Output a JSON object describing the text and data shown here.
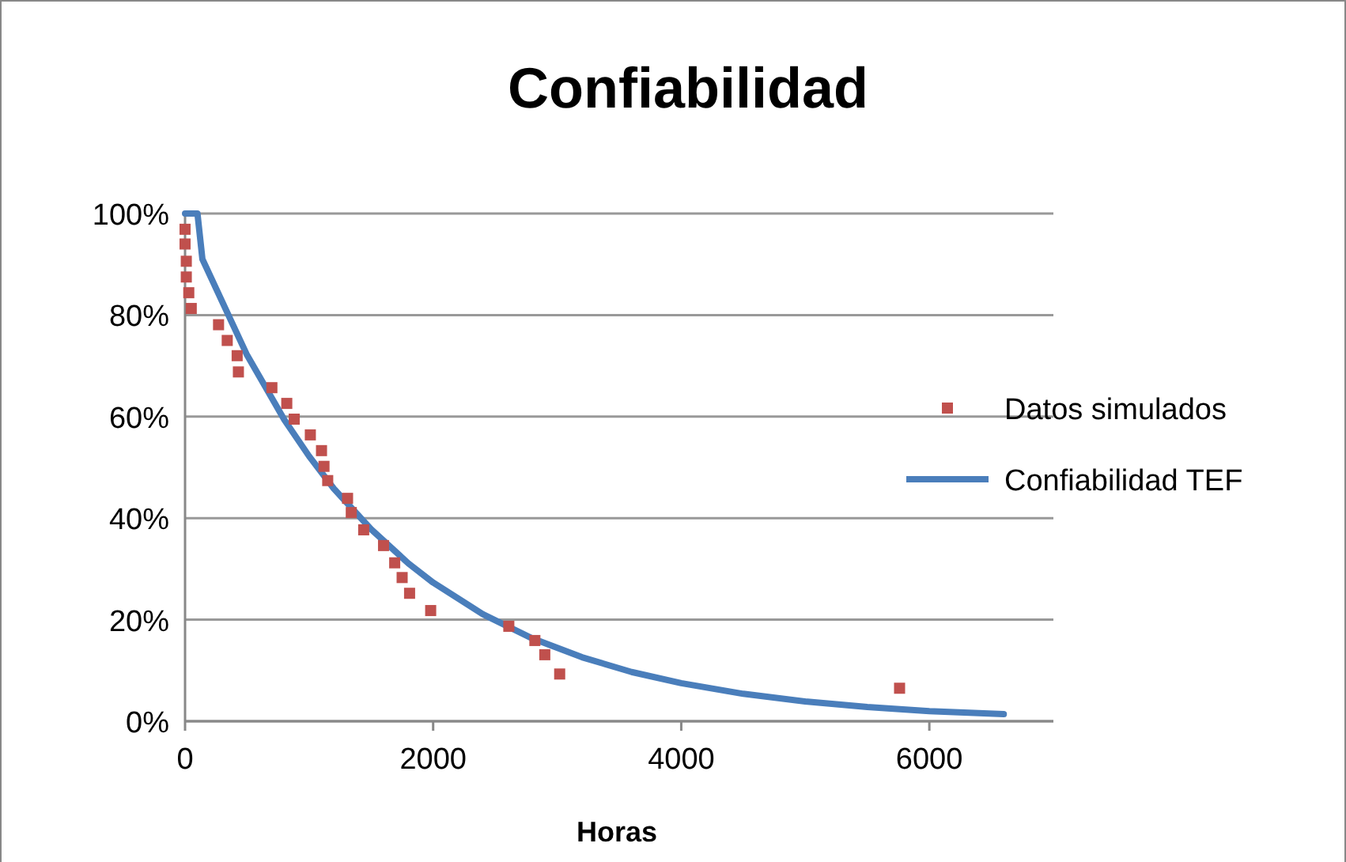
{
  "chart_data": {
    "type": "scatter",
    "title": "Confiabilidad",
    "xlabel": "Horas",
    "xlim": [
      0,
      7000
    ],
    "xticks": [
      0,
      2000,
      4000,
      6000
    ],
    "ylim": [
      0,
      100
    ],
    "yticks": [
      {
        "value": 0,
        "label": "0%"
      },
      {
        "value": 20,
        "label": "20%"
      },
      {
        "value": 40,
        "label": "40%"
      },
      {
        "value": 60,
        "label": "60%"
      },
      {
        "value": 80,
        "label": "80%"
      },
      {
        "value": 100,
        "label": "100%"
      }
    ],
    "grid": "y",
    "legend": "right",
    "series": [
      {
        "name": "Datos simulados",
        "marker": "square",
        "color": "#c0504d",
        "x": [
          0,
          0,
          10,
          10,
          30,
          50,
          270,
          340,
          420,
          430,
          700,
          820,
          880,
          1010,
          1100,
          1120,
          1150,
          1310,
          1340,
          1440,
          1600,
          1690,
          1750,
          1810,
          1980,
          2610,
          2820,
          2900,
          3020,
          5760
        ],
        "values": [
          96.9,
          94,
          90.6,
          87.5,
          84.4,
          81.3,
          78.1,
          75,
          72,
          68.8,
          65.7,
          62.6,
          59.5,
          56.4,
          53.3,
          50.2,
          47.4,
          43.9,
          41.1,
          37.7,
          34.6,
          31.2,
          28.3,
          25.2,
          21.8,
          18.7,
          15.9,
          13.1,
          9.3,
          6.5
        ]
      },
      {
        "name": "Confiabilidad TEF",
        "type": "line",
        "marker": "none",
        "line_style": "solid",
        "color": "#4a7ebb",
        "x": [
          0,
          100,
          140,
          500,
          800,
          1000,
          1200,
          1500,
          1800,
          2000,
          2400,
          2800,
          3200,
          3600,
          4000,
          4500,
          5000,
          5500,
          6000,
          6600
        ],
        "values": [
          100,
          100,
          91,
          72.1,
          59.4,
          52.2,
          45.8,
          37.8,
          31.1,
          27.3,
          21.1,
          16.3,
          12.6,
          9.7,
          7.5,
          5.4,
          3.9,
          2.8,
          2,
          1.4
        ]
      }
    ]
  }
}
